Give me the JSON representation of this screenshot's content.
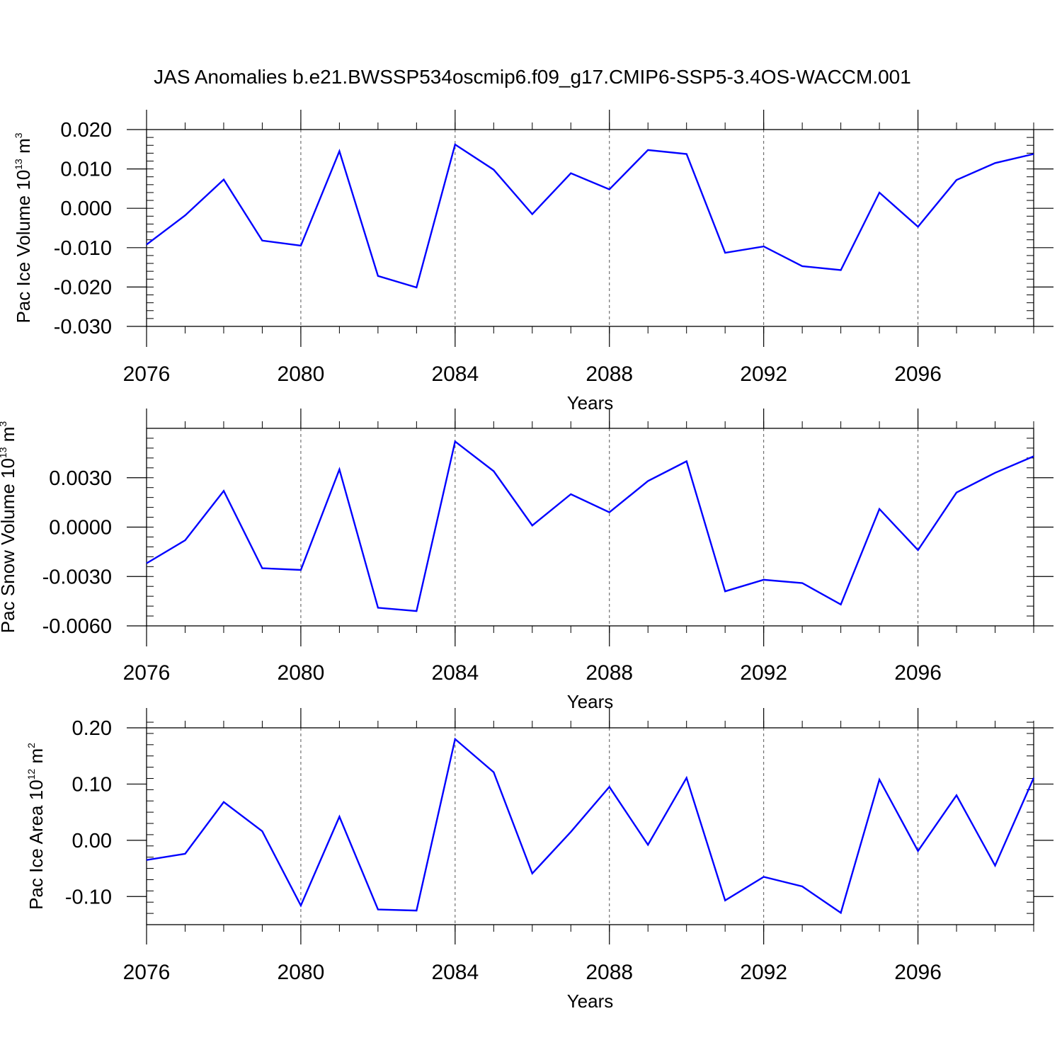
{
  "figure": {
    "title": "JAS Anomalies b.e21.BWSSP534oscmip6.f09_g17.CMIP6-SSP5-3.4OS-WACCM.001"
  },
  "chart_data": [
    {
      "type": "line",
      "title": "",
      "ylabel": {
        "base": "Pac Ice Volume 10",
        "exponent": "13",
        "unit": " m",
        "unit_exponent": "3"
      },
      "xlabel": "Years",
      "xlim": [
        2076,
        2099
      ],
      "ylim": [
        -0.03,
        0.02
      ],
      "xticks": [
        2076,
        2080,
        2084,
        2088,
        2092,
        2096
      ],
      "xtick_labels": [
        "2076",
        "2080",
        "2084",
        "2088",
        "2092",
        "2096"
      ],
      "yticks": [
        -0.03,
        -0.02,
        -0.01,
        0.0,
        0.01,
        0.02
      ],
      "ytick_labels": [
        "-0.030",
        "-0.020",
        "-0.010",
        "0.000",
        "0.010",
        "0.020"
      ],
      "minor_y_step": 0.002,
      "grid": "vertical dashed at major x ticks",
      "series": [
        {
          "color": "#0000ff",
          "x": [
            2076,
            2077,
            2078,
            2079,
            2080,
            2081,
            2082,
            2083,
            2084,
            2085,
            2086,
            2087,
            2088,
            2089,
            2090,
            2091,
            2092,
            2093,
            2094,
            2095,
            2096,
            2097,
            2098,
            2099
          ],
          "values": [
            -0.0092,
            -0.0018,
            0.0073,
            -0.0082,
            -0.0095,
            0.0145,
            -0.0172,
            -0.0201,
            0.0162,
            0.0098,
            -0.0015,
            0.0089,
            0.0048,
            0.0148,
            0.0138,
            -0.0113,
            -0.0097,
            -0.0147,
            -0.0157,
            0.004,
            -0.0047,
            0.0072,
            0.0115,
            0.0138
          ]
        }
      ]
    },
    {
      "type": "line",
      "title": "",
      "ylabel": {
        "base": "Pac Snow Volume 10",
        "exponent": "13",
        "unit": " m",
        "unit_exponent": "3"
      },
      "xlabel": "Years",
      "xlim": [
        2076,
        2099
      ],
      "ylim": [
        -0.006,
        0.006
      ],
      "xticks": [
        2076,
        2080,
        2084,
        2088,
        2092,
        2096
      ],
      "xtick_labels": [
        "2076",
        "2080",
        "2084",
        "2088",
        "2092",
        "2096"
      ],
      "yticks": [
        -0.006,
        -0.003,
        0.0,
        0.003
      ],
      "ytick_labels": [
        "-0.0060",
        "-0.0030",
        "0.0000",
        "0.0030"
      ],
      "minor_y_step": 0.0006,
      "grid": "vertical dashed at major x ticks",
      "series": [
        {
          "color": "#0000ff",
          "x": [
            2076,
            2077,
            2078,
            2079,
            2080,
            2081,
            2082,
            2083,
            2084,
            2085,
            2086,
            2087,
            2088,
            2089,
            2090,
            2091,
            2092,
            2093,
            2094,
            2095,
            2096,
            2097,
            2098,
            2099
          ],
          "values": [
            -0.0022,
            -0.0008,
            0.0022,
            -0.0025,
            -0.0026,
            0.0035,
            -0.0049,
            -0.0051,
            0.0052,
            0.0034,
            0.0001,
            0.002,
            0.0009,
            0.0028,
            0.004,
            -0.0039,
            -0.0032,
            -0.0034,
            -0.0047,
            0.0011,
            -0.0014,
            0.0021,
            0.0033,
            0.0043
          ]
        }
      ]
    },
    {
      "type": "line",
      "title": "",
      "ylabel": {
        "base": "Pac Ice Area 10",
        "exponent": "12",
        "unit": " m",
        "unit_exponent": "2"
      },
      "xlabel": "Years",
      "xlim": [
        2076,
        2099
      ],
      "ylim": [
        -0.15,
        0.2
      ],
      "xticks": [
        2076,
        2080,
        2084,
        2088,
        2092,
        2096
      ],
      "xtick_labels": [
        "2076",
        "2080",
        "2084",
        "2088",
        "2092",
        "2096"
      ],
      "yticks": [
        -0.1,
        0.0,
        0.1,
        0.2
      ],
      "ytick_labels": [
        "-0.10",
        "0.00",
        "0.10",
        "0.20"
      ],
      "minor_y_step": 0.02,
      "grid": "vertical dashed at major x ticks",
      "series": [
        {
          "color": "#0000ff",
          "x": [
            2076,
            2077,
            2078,
            2079,
            2080,
            2081,
            2082,
            2083,
            2084,
            2085,
            2086,
            2087,
            2088,
            2089,
            2090,
            2091,
            2092,
            2093,
            2094,
            2095,
            2096,
            2097,
            2098,
            2099
          ],
          "values": [
            -0.035,
            -0.024,
            0.068,
            0.016,
            -0.116,
            0.042,
            -0.123,
            -0.125,
            0.18,
            0.121,
            -0.059,
            0.015,
            0.095,
            -0.008,
            0.111,
            -0.107,
            -0.065,
            -0.082,
            -0.129,
            0.108,
            -0.019,
            0.08,
            -0.045,
            0.111
          ]
        }
      ]
    }
  ]
}
